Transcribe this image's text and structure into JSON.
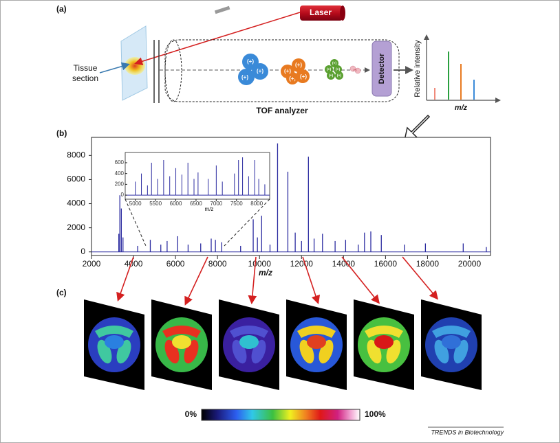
{
  "panel_a": {
    "label": "(a)",
    "laser": "Laser",
    "tissue_label": [
      "Tissue",
      "section"
    ],
    "ions_blue": [
      "(+)",
      "(+)",
      "(+)"
    ],
    "ions_orange": [
      "(+)",
      "(+)",
      "(+)",
      "(+,"
    ],
    "ions_green": [
      "(+)",
      "(+)",
      "(+)",
      "(+)",
      "(+)"
    ],
    "ions_pink": [
      "(+)"
    ],
    "detector": "Detector",
    "y_label": "Relative intensity",
    "x_label": "m/z",
    "analyzer": "TOF analyzer"
  },
  "panel_b": {
    "label": "(b)"
  },
  "chart_data": [
    {
      "type": "stem",
      "x_label": "m/z",
      "color": "#2b2ba0",
      "xlim": [
        2000,
        21000
      ],
      "ylim": [
        -300,
        9500
      ],
      "xticks": [
        2000,
        4000,
        6000,
        8000,
        10000,
        12000,
        14000,
        16000,
        18000,
        20000
      ],
      "yticks": [
        0,
        2000,
        4000,
        6000,
        8000
      ],
      "x": [
        3300,
        3350,
        3420,
        3500,
        4200,
        4800,
        5300,
        5600,
        6100,
        6600,
        7200,
        7700,
        7900,
        8200,
        9100,
        9700,
        9900,
        10100,
        10500,
        10860,
        11350,
        11700,
        12000,
        12330,
        12600,
        13000,
        13600,
        14100,
        14700,
        15000,
        15300,
        15800,
        16900,
        17900,
        19700,
        20800
      ],
      "values": [
        1500,
        4700,
        3600,
        1200,
        500,
        1000,
        600,
        900,
        1300,
        600,
        700,
        1100,
        1000,
        800,
        500,
        2700,
        1200,
        3000,
        600,
        9000,
        6650,
        1600,
        900,
        7900,
        1100,
        1500,
        900,
        1000,
        600,
        1600,
        1700,
        1400,
        600,
        700,
        700,
        400
      ]
    },
    {
      "type": "stem",
      "x_label": "m/z",
      "color": "#2b2ba0",
      "xlim": [
        4750,
        8320
      ],
      "ylim": [
        -75,
        790
      ],
      "xticks": [
        5000,
        5500,
        6000,
        6500,
        7000,
        7500,
        8000
      ],
      "yticks": [
        0,
        200,
        400,
        600
      ],
      "x": [
        5000,
        5150,
        5300,
        5400,
        5550,
        5700,
        5850,
        6000,
        6150,
        6300,
        6450,
        6550,
        6800,
        7000,
        7150,
        7450,
        7550,
        7650,
        7800,
        7950,
        8050,
        8200
      ],
      "values": [
        250,
        400,
        180,
        600,
        300,
        650,
        350,
        500,
        380,
        600,
        300,
        420,
        300,
        550,
        250,
        400,
        650,
        700,
        350,
        650,
        300,
        200
      ]
    }
  ],
  "panel_c": {
    "label": "(c)",
    "scale_min": "0%",
    "scale_max": "100%"
  },
  "credit": "TRENDS in Biotechnology"
}
